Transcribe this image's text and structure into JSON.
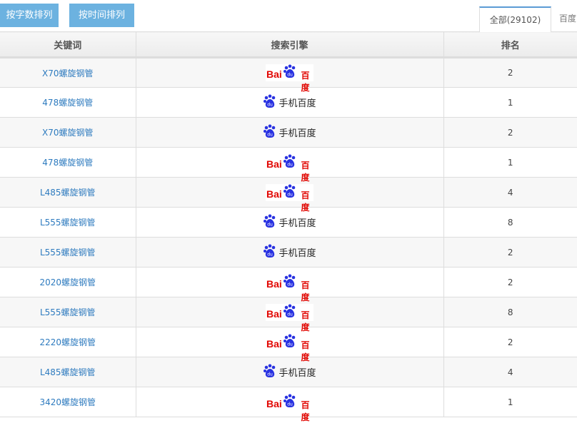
{
  "toolbar": {
    "sort_by_length": "按字数排列",
    "sort_by_time": "按时间排列"
  },
  "tabs": [
    {
      "label": "全部(29102)",
      "active": true
    },
    {
      "label": "百度",
      "active": false
    }
  ],
  "table": {
    "headers": [
      "关键词",
      "搜索引擎",
      "排名"
    ],
    "rows": [
      {
        "keyword": "X70螺旋钢管",
        "engine": "baidu",
        "rank": "2"
      },
      {
        "keyword": "478螺旋钢管",
        "engine": "mobile",
        "rank": "1"
      },
      {
        "keyword": "X70螺旋钢管",
        "engine": "mobile",
        "rank": "2"
      },
      {
        "keyword": "478螺旋钢管",
        "engine": "baidu",
        "rank": "1"
      },
      {
        "keyword": "L485螺旋钢管",
        "engine": "baidu",
        "rank": "4"
      },
      {
        "keyword": "L555螺旋钢管",
        "engine": "mobile",
        "rank": "8"
      },
      {
        "keyword": "L555螺旋钢管",
        "engine": "mobile",
        "rank": "2"
      },
      {
        "keyword": "2020螺旋钢管",
        "engine": "baidu",
        "rank": "2"
      },
      {
        "keyword": "L555螺旋钢管",
        "engine": "baidu",
        "rank": "8"
      },
      {
        "keyword": "2220螺旋钢管",
        "engine": "baidu",
        "rank": "2"
      },
      {
        "keyword": "L485螺旋钢管",
        "engine": "mobile",
        "rank": "4"
      },
      {
        "keyword": "3420螺旋钢管",
        "engine": "baidu",
        "rank": "1"
      }
    ]
  },
  "engines": {
    "baidu": {
      "logo_text": "Bai du 百度"
    },
    "mobile": {
      "label": "手机百度"
    }
  },
  "colors": {
    "button": "#6cb2e0",
    "link": "#2e7bbf",
    "baidu_red": "#e10601",
    "baidu_blue": "#2932e1"
  }
}
